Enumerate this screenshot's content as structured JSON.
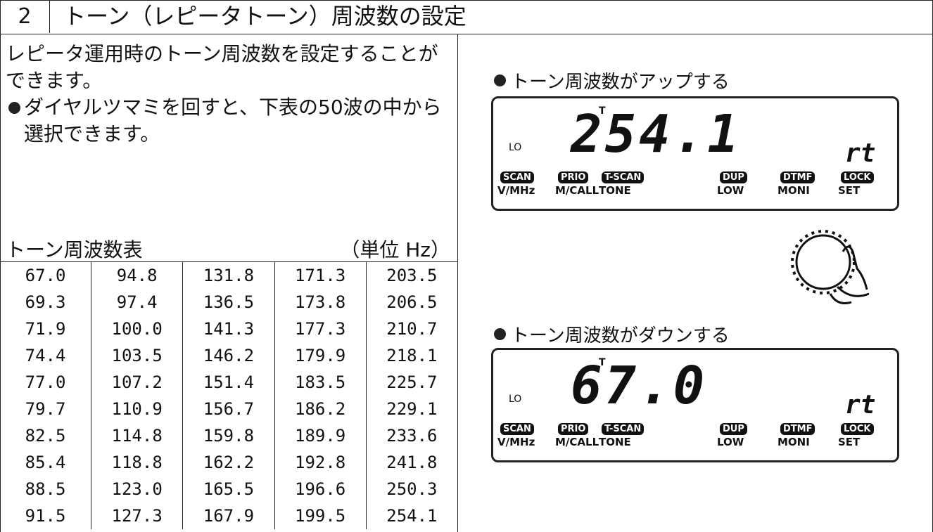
{
  "header": {
    "number": "2",
    "title": "トーン（レピータトーン）周波数の設定"
  },
  "intro": {
    "text": "レピータ運用時のトーン周波数を設定することができます。",
    "bullet": "ダイヤルツマミを回すと、下表の50波の中から選択できます。"
  },
  "table": {
    "caption": "トーン周波数表",
    "unit": "（単位 Hz）",
    "rows": [
      [
        "67.0",
        "94.8",
        "131.8",
        "171.3",
        "203.5"
      ],
      [
        "69.3",
        "97.4",
        "136.5",
        "173.8",
        "206.5"
      ],
      [
        "71.9",
        "100.0",
        "141.3",
        "177.3",
        "210.7"
      ],
      [
        "74.4",
        "103.5",
        "146.2",
        "179.9",
        "218.1"
      ],
      [
        "77.0",
        "107.2",
        "151.4",
        "183.5",
        "225.7"
      ],
      [
        "79.7",
        "110.9",
        "156.7",
        "186.2",
        "229.1"
      ],
      [
        "82.5",
        "114.8",
        "159.8",
        "189.9",
        "233.6"
      ],
      [
        "85.4",
        "118.8",
        "162.2",
        "192.8",
        "241.8"
      ],
      [
        "88.5",
        "123.0",
        "165.5",
        "196.6",
        "250.3"
      ],
      [
        "91.5",
        "127.3",
        "167.9",
        "199.5",
        "254.1"
      ]
    ]
  },
  "display_marks": {
    "tone": "T",
    "low": "LO",
    "mode": "rt"
  },
  "indicators": [
    {
      "badge": "SCAN",
      "label": "V/MHz"
    },
    {
      "badge": "PRIO",
      "label": "M/CALL"
    },
    {
      "badge": "T-SCAN",
      "label": "TONE"
    },
    {
      "badge": "DUP",
      "label": "LOW"
    },
    {
      "badge": "DTMF",
      "label": "MONI"
    },
    {
      "badge": "LOCK",
      "label": "SET"
    }
  ],
  "displays": [
    {
      "caption": "トーン周波数がアップする",
      "readout": "254.1"
    },
    {
      "caption": "トーン周波数がダウンする",
      "readout": "67.0"
    }
  ]
}
